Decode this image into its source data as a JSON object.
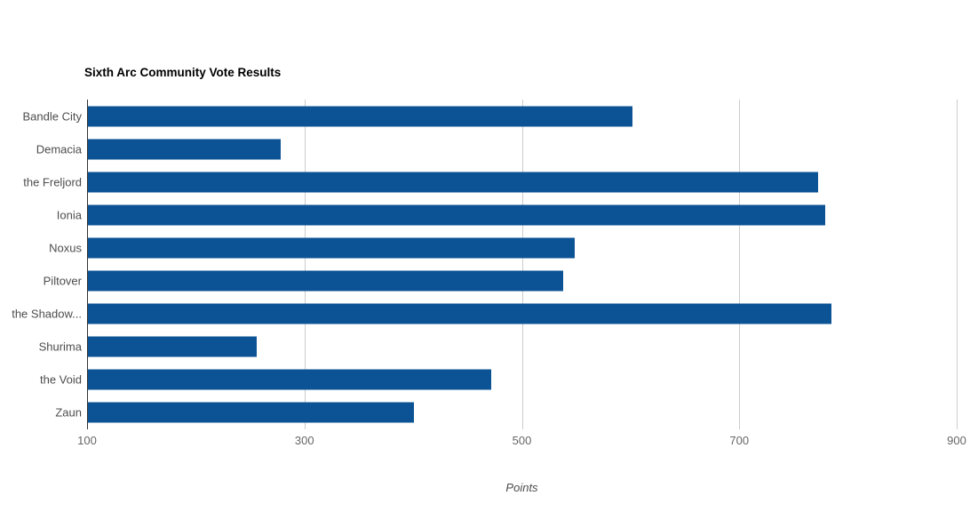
{
  "chart_data": {
    "type": "bar",
    "orientation": "horizontal",
    "title": "Sixth Arc Community Vote Results",
    "categories": [
      "Bandle City",
      "Demacia",
      "the Freljord",
      "Ionia",
      "Noxus",
      "Piltover",
      "the Shadow...",
      "Shurima",
      "the Void",
      "Zaun"
    ],
    "values": [
      601,
      277,
      772,
      778,
      548,
      537,
      784,
      255,
      471,
      400
    ],
    "xlabel": "Points",
    "ylabel": "",
    "xlim": [
      100,
      900
    ],
    "xticks": [
      100,
      300,
      500,
      700,
      900
    ],
    "grid": true,
    "legend": "none",
    "colors": {
      "bar": "#0b5394",
      "gridline": "#cccccc",
      "axis_line": "#333333",
      "category_label": "#4d4d4d",
      "tick_label": "#666666",
      "axis_title": "#4d4d4d",
      "title": "#000000",
      "background": "#ffffff"
    }
  }
}
